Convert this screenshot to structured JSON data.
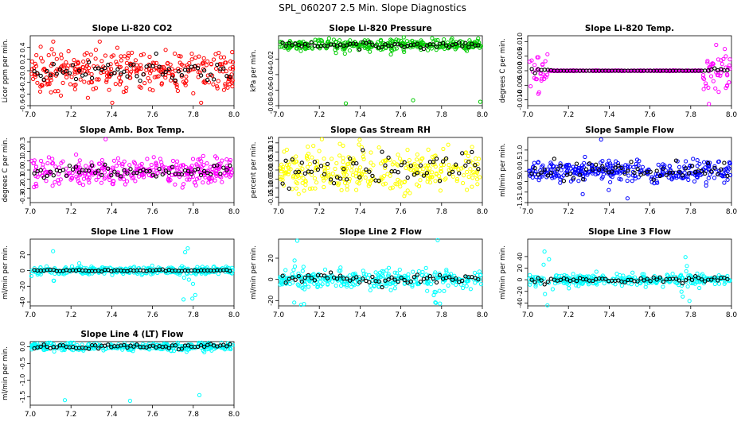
{
  "page_title": "SPL_060207  2.5 Min. Slope Diagnostics",
  "x_ticks": [
    "7.0",
    "7.2",
    "7.4",
    "7.6",
    "7.8",
    "8.0"
  ],
  "chart_data": [
    {
      "type": "scatter",
      "title": "Slope Li-820 CO2",
      "ylabel": "Licor ppm per min.",
      "xlim": [
        7.0,
        8.0
      ],
      "ylim": [
        -0.6,
        0.6
      ],
      "ytick_values": [
        -0.6,
        -0.4,
        -0.2,
        0.0,
        0.2,
        0.4
      ],
      "ytick_labels": [
        "-0.6",
        "-0.4",
        "-0.2",
        "0.0",
        "0.2",
        "0.4"
      ],
      "color": "#ff0000",
      "noise": 0.17,
      "outlier_pattern": "spread",
      "lo": -0.55,
      "hi": 0.5,
      "overlay_color": "#000000",
      "overlay_noise": 0.1
    },
    {
      "type": "scatter",
      "title": "Slope Li-820 Pressure",
      "ylabel": "kPa per min.",
      "xlim": [
        7.0,
        8.0
      ],
      "ylim": [
        -0.08,
        0.01
      ],
      "ytick_values": [
        -0.08,
        -0.06,
        -0.04,
        -0.02
      ],
      "ytick_labels": [
        "-0.08",
        "-0.06",
        "-0.04",
        "-0.02"
      ],
      "color": "#00cc00",
      "noise": 0.004,
      "center": -0.002,
      "outliers": [
        [
          7.33,
          -0.077
        ],
        [
          7.66,
          -0.073
        ],
        [
          7.99,
          -0.075
        ]
      ],
      "lo": -0.08,
      "hi": 0.008,
      "overlay_color": "#000000",
      "overlay_noise": 0.002
    },
    {
      "type": "scatter",
      "title": "Slope Li-820 Temp.",
      "ylabel": "degrees C per min.",
      "xlim": [
        7.0,
        8.0
      ],
      "ylim": [
        -0.012,
        0.012
      ],
      "ytick_values": [
        -0.01,
        -0.005,
        0.0,
        0.005,
        0.01
      ],
      "ytick_labels": [
        "-0.010",
        "-0.005",
        "0.000",
        "0.005",
        "0.010"
      ],
      "color": "#ff00ff",
      "noise": 0.004,
      "edge_only": true,
      "lo": -0.012,
      "hi": 0.012,
      "overlay_color": "#000000",
      "overlay_noise": 0.0005
    },
    {
      "type": "scatter",
      "title": "Slope Amb. Box Temp.",
      "ylabel": "degrees C per min.",
      "xlim": [
        7.0,
        8.0
      ],
      "ylim": [
        -0.35,
        0.35
      ],
      "ytick_values": [
        -0.3,
        -0.2,
        -0.1,
        0.0,
        0.1,
        0.2,
        0.3
      ],
      "ytick_labels": [
        "-0.3",
        "-0.2",
        "-0.1",
        "0.0",
        "0.1",
        "0.2",
        "0.3"
      ],
      "color": "#ff00ff",
      "noise": 0.07,
      "center": -0.02,
      "outliers": [
        [
          7.37,
          0.33
        ]
      ],
      "lo": -0.34,
      "hi": 0.34,
      "overlay_color": "#000000",
      "overlay_noise": 0.03
    },
    {
      "type": "scatter",
      "title": "Slope Gas Stream RH",
      "ylabel": "percent per min.",
      "xlim": [
        7.0,
        8.0
      ],
      "ylim": [
        -0.18,
        0.18
      ],
      "ytick_values": [
        -0.15,
        -0.1,
        -0.05,
        0.0,
        0.05,
        0.1,
        0.15
      ],
      "ytick_labels": [
        "-0.15",
        "-0.10",
        "-0.05",
        "0.00",
        "0.05",
        "0.10",
        "0.15"
      ],
      "color": "#ffff00",
      "noise": 0.06,
      "lo": -0.17,
      "hi": 0.17,
      "overlay_color": "#000000",
      "overlay_noise": 0.05
    },
    {
      "type": "scatter",
      "title": "Slope Sample Flow",
      "ylabel": "ml/min per min.",
      "xlim": [
        7.0,
        8.0
      ],
      "ylim": [
        -1.5,
        1.6
      ],
      "ytick_values": [
        -1.5,
        -1.0,
        -0.5,
        0.0,
        0.5,
        1.0
      ],
      "ytick_labels": [
        "-1.5",
        "-1.0",
        "-0.5",
        "0.0",
        "0.5",
        "1.0"
      ],
      "color": "#0000ff",
      "noise": 0.25,
      "outliers": [
        [
          7.36,
          1.5
        ],
        [
          7.49,
          -1.3
        ],
        [
          7.27,
          -1.1
        ]
      ],
      "lo": -1.5,
      "hi": 1.5,
      "overlay_color": "#000000",
      "overlay_noise": 0.2
    },
    {
      "type": "scatter",
      "title": "Slope Line 1 Flow",
      "ylabel": "ml/min per min.",
      "xlim": [
        7.0,
        8.0
      ],
      "ylim": [
        -45,
        40
      ],
      "ytick_values": [
        -40,
        -20,
        0,
        20
      ],
      "ytick_labels": [
        "-40",
        "-20",
        "0",
        "20"
      ],
      "color": "#00ffff",
      "noise": 2.5,
      "burst_at": [
        7.1,
        7.78
      ],
      "burst_size": 22,
      "lo": -44,
      "hi": 39,
      "overlay_color": "#000000",
      "overlay_noise": 0.6
    },
    {
      "type": "scatter",
      "title": "Slope Line 2 Flow",
      "ylabel": "ml/min per min.",
      "xlim": [
        7.0,
        8.0
      ],
      "ylim": [
        -25,
        38
      ],
      "ytick_values": [
        -20,
        0,
        20
      ],
      "ytick_labels": [
        "-20",
        "0",
        "20"
      ],
      "color": "#00ffff",
      "noise": 4,
      "burst_at": [
        7.1,
        7.77
      ],
      "burst_size": 16,
      "lo": -24,
      "hi": 37,
      "overlay_color": "#000000",
      "overlay_noise": 2.5
    },
    {
      "type": "scatter",
      "title": "Slope Line 3 Flow",
      "ylabel": "ml/min per min.",
      "xlim": [
        7.0,
        8.0
      ],
      "ylim": [
        -45,
        70
      ],
      "ytick_values": [
        -40,
        -20,
        0,
        20,
        40
      ],
      "ytick_labels": [
        "-40",
        "-20",
        "0",
        "20",
        "40"
      ],
      "color": "#00ffff",
      "noise": 5,
      "burst_at": [
        7.1,
        7.77
      ],
      "burst_size": 26,
      "lo": -44,
      "hi": 68,
      "overlay_color": "#000000",
      "overlay_noise": 3
    },
    {
      "type": "scatter",
      "title": "Slope Line 4 (LT) Flow",
      "ylabel": "ml/min per min.",
      "xlim": [
        7.0,
        8.0
      ],
      "ylim": [
        -1.75,
        0.15
      ],
      "ytick_values": [
        -1.5,
        -1.0,
        -0.5,
        0.0
      ],
      "ytick_labels": [
        "-1.5",
        "-1.0",
        "-0.5",
        "0.0"
      ],
      "color": "#00ffff",
      "noise": 0.06,
      "outliers": [
        [
          7.17,
          -1.6
        ],
        [
          7.49,
          -1.62
        ],
        [
          7.83,
          -1.45
        ]
      ],
      "lo": -1.7,
      "hi": 0.12,
      "overlay_color": "#000000",
      "overlay_noise": 0.04
    }
  ]
}
